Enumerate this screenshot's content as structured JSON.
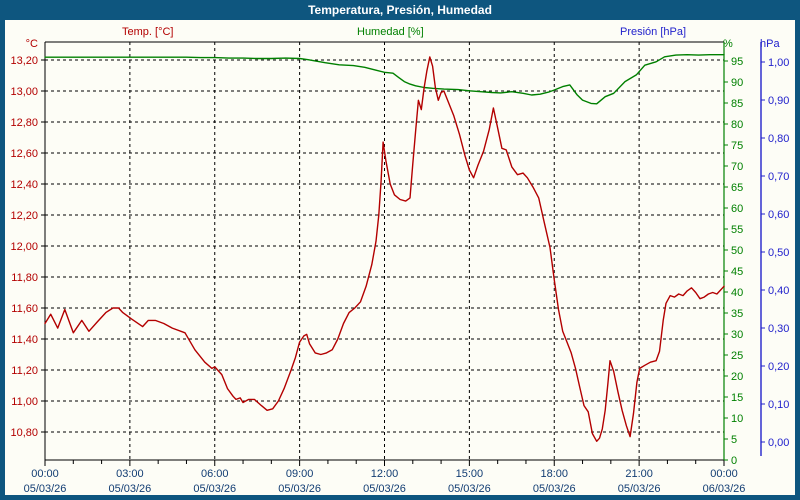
{
  "window": {
    "title": "Temperatura, Presión, Humedad"
  },
  "colors": {
    "window_border": "#0e567f",
    "titlebar_bg": "#0e567f",
    "titlebar_text": "#ffffff",
    "page_bg": "#fdfdf6",
    "temp": "#b30000",
    "humidity": "#008000",
    "pressure": "#2222cc",
    "grid": "#000000",
    "frame": "#000000",
    "time_text": "#123d73"
  },
  "header_units": {
    "temp": "°C",
    "humidity": "%",
    "pressure": "hPa"
  },
  "chart_data": {
    "type": "line",
    "title": "Temperatura, Presión, Humedad",
    "x_axis": {
      "range_hours": [
        0,
        24
      ],
      "grid_hours": [
        3,
        6,
        9,
        12,
        15,
        18,
        21
      ],
      "major_tick_hours": [
        0,
        3,
        6,
        9,
        12,
        15,
        18,
        21,
        24
      ],
      "minor_tick_step_hours": 1,
      "time_labels": [
        "00:00",
        "03:00",
        "06:00",
        "09:00",
        "12:00",
        "15:00",
        "18:00",
        "21:00",
        "00:00"
      ],
      "date_labels": [
        "05/03/26",
        "05/03/26",
        "05/03/26",
        "05/03/26",
        "05/03/26",
        "05/03/26",
        "05/03/26",
        "05/03/26",
        "06/03/26"
      ]
    },
    "y_axis_temp": {
      "title": "Temp. [°C]",
      "unit": "°C",
      "side": "left",
      "color": "#b30000",
      "grid": "dashed",
      "tick_labels": [
        "13,20",
        "13,00",
        "12,80",
        "12,60",
        "12,40",
        "12,20",
        "12,00",
        "11,80",
        "11,60",
        "11,40",
        "11,20",
        "11,00",
        "10,80"
      ],
      "tick_values": [
        13.2,
        13.0,
        12.8,
        12.6,
        12.4,
        12.2,
        12.0,
        11.8,
        11.6,
        11.4,
        11.2,
        11.0,
        10.8
      ]
    },
    "y_axis_humidity": {
      "title": "Humedad [%]",
      "unit": "%",
      "side": "right",
      "color": "#008000",
      "tick_labels": [
        "95",
        "90",
        "85",
        "80",
        "75",
        "70",
        "65",
        "60",
        "55",
        "50",
        "45",
        "40",
        "35",
        "30",
        "25",
        "20",
        "15",
        "10",
        "5",
        "0"
      ],
      "tick_values": [
        95,
        90,
        85,
        80,
        75,
        70,
        65,
        60,
        55,
        50,
        45,
        40,
        35,
        30,
        25,
        20,
        15,
        10,
        5,
        0
      ]
    },
    "y_axis_pressure": {
      "title": "Presión [hPa]",
      "unit": "hPa",
      "side": "right-outer",
      "color": "#2222cc",
      "tick_labels": [
        "1,00",
        "0,90",
        "0,80",
        "0,70",
        "0,60",
        "0,50",
        "0,40",
        "0,30",
        "0,20",
        "0,10",
        "0,00"
      ],
      "tick_values": [
        1.0,
        0.9,
        0.8,
        0.7,
        0.6,
        0.5,
        0.4,
        0.3,
        0.2,
        0.1,
        0.0
      ]
    },
    "series": [
      {
        "name": "Temp. [°C]",
        "axis": "temp",
        "color": "#b30000",
        "points": [
          [
            0,
            11.5
          ],
          [
            0.2,
            11.56
          ],
          [
            0.45,
            11.47
          ],
          [
            0.7,
            11.59
          ],
          [
            1,
            11.44
          ],
          [
            1.3,
            11.52
          ],
          [
            1.55,
            11.45
          ],
          [
            1.85,
            11.51
          ],
          [
            2.15,
            11.57
          ],
          [
            2.4,
            11.6
          ],
          [
            2.6,
            11.6
          ],
          [
            2.75,
            11.57
          ],
          [
            3.05,
            11.53
          ],
          [
            3.45,
            11.48
          ],
          [
            3.65,
            11.52
          ],
          [
            3.9,
            11.52
          ],
          [
            4.2,
            11.5
          ],
          [
            4.5,
            11.47
          ],
          [
            4.95,
            11.44
          ],
          [
            5.3,
            11.33
          ],
          [
            5.65,
            11.25
          ],
          [
            5.9,
            11.21
          ],
          [
            6,
            11.22
          ],
          [
            6.25,
            11.17
          ],
          [
            6.45,
            11.08
          ],
          [
            6.65,
            11.03
          ],
          [
            6.75,
            11.01
          ],
          [
            6.9,
            11.02
          ],
          [
            7,
            10.99
          ],
          [
            7.2,
            11.01
          ],
          [
            7.4,
            11.01
          ],
          [
            7.65,
            10.97
          ],
          [
            7.85,
            10.94
          ],
          [
            8.05,
            10.95
          ],
          [
            8.25,
            11
          ],
          [
            8.45,
            11.08
          ],
          [
            8.7,
            11.2
          ],
          [
            8.85,
            11.28
          ],
          [
            9,
            11.38
          ],
          [
            9.15,
            11.42
          ],
          [
            9.25,
            11.43
          ],
          [
            9.35,
            11.37
          ],
          [
            9.55,
            11.31
          ],
          [
            9.75,
            11.3
          ],
          [
            9.95,
            11.31
          ],
          [
            10.15,
            11.33
          ],
          [
            10.35,
            11.4
          ],
          [
            10.55,
            11.5
          ],
          [
            10.75,
            11.57
          ],
          [
            10.95,
            11.6
          ],
          [
            11.15,
            11.64
          ],
          [
            11.35,
            11.74
          ],
          [
            11.55,
            11.88
          ],
          [
            11.7,
            12.03
          ],
          [
            11.8,
            12.2
          ],
          [
            11.88,
            12.42
          ],
          [
            11.95,
            12.67
          ],
          [
            12.05,
            12.55
          ],
          [
            12.2,
            12.4
          ],
          [
            12.35,
            12.33
          ],
          [
            12.55,
            12.3
          ],
          [
            12.75,
            12.29
          ],
          [
            12.9,
            12.31
          ],
          [
            13,
            12.53
          ],
          [
            13.1,
            12.74
          ],
          [
            13.2,
            12.94
          ],
          [
            13.3,
            12.88
          ],
          [
            13.4,
            13.02
          ],
          [
            13.5,
            13.13
          ],
          [
            13.6,
            13.22
          ],
          [
            13.7,
            13.16
          ],
          [
            13.8,
            13.02
          ],
          [
            13.9,
            12.94
          ],
          [
            14,
            12.99
          ],
          [
            14.1,
            13
          ],
          [
            14.25,
            12.93
          ],
          [
            14.45,
            12.84
          ],
          [
            14.65,
            12.72
          ],
          [
            14.85,
            12.58
          ],
          [
            15,
            12.49
          ],
          [
            15.15,
            12.44
          ],
          [
            15.3,
            12.52
          ],
          [
            15.5,
            12.61
          ],
          [
            15.7,
            12.75
          ],
          [
            15.85,
            12.89
          ],
          [
            16,
            12.76
          ],
          [
            16.15,
            12.63
          ],
          [
            16.3,
            12.62
          ],
          [
            16.5,
            12.51
          ],
          [
            16.7,
            12.46
          ],
          [
            16.9,
            12.47
          ],
          [
            17.05,
            12.44
          ],
          [
            17.25,
            12.38
          ],
          [
            17.45,
            12.31
          ],
          [
            17.65,
            12.15
          ],
          [
            17.85,
            11.99
          ],
          [
            18,
            11.78
          ],
          [
            18.15,
            11.59
          ],
          [
            18.3,
            11.45
          ],
          [
            18.45,
            11.38
          ],
          [
            18.6,
            11.31
          ],
          [
            18.75,
            11.21
          ],
          [
            18.9,
            11.09
          ],
          [
            19.05,
            10.97
          ],
          [
            19.2,
            10.93
          ],
          [
            19.35,
            10.79
          ],
          [
            19.5,
            10.74
          ],
          [
            19.6,
            10.76
          ],
          [
            19.7,
            10.82
          ],
          [
            19.8,
            10.94
          ],
          [
            19.9,
            11.12
          ],
          [
            19.97,
            11.26
          ],
          [
            20.1,
            11.19
          ],
          [
            20.25,
            11.06
          ],
          [
            20.4,
            10.94
          ],
          [
            20.55,
            10.84
          ],
          [
            20.68,
            10.77
          ],
          [
            20.8,
            10.92
          ],
          [
            20.92,
            11.12
          ],
          [
            21.02,
            11.21
          ],
          [
            21.2,
            11.23
          ],
          [
            21.4,
            11.25
          ],
          [
            21.6,
            11.26
          ],
          [
            21.72,
            11.32
          ],
          [
            21.85,
            11.52
          ],
          [
            21.95,
            11.63
          ],
          [
            22.1,
            11.68
          ],
          [
            22.25,
            11.67
          ],
          [
            22.4,
            11.69
          ],
          [
            22.55,
            11.68
          ],
          [
            22.7,
            11.71
          ],
          [
            22.85,
            11.73
          ],
          [
            23,
            11.7
          ],
          [
            23.15,
            11.66
          ],
          [
            23.3,
            11.67
          ],
          [
            23.45,
            11.69
          ],
          [
            23.6,
            11.7
          ],
          [
            23.75,
            11.69
          ],
          [
            23.85,
            11.71
          ],
          [
            24,
            11.74
          ]
        ]
      },
      {
        "name": "Humedad [%]",
        "axis": "humidity",
        "color": "#008000",
        "points": [
          [
            0,
            95.9
          ],
          [
            0.5,
            95.9
          ],
          [
            1,
            95.9
          ],
          [
            1.5,
            95.9
          ],
          [
            2,
            95.9
          ],
          [
            2.5,
            95.9
          ],
          [
            3,
            95.9
          ],
          [
            3.5,
            95.9
          ],
          [
            4,
            95.9
          ],
          [
            4.5,
            95.9
          ],
          [
            5,
            95.9
          ],
          [
            5.5,
            95.8
          ],
          [
            6,
            95.8
          ],
          [
            6.5,
            95.7
          ],
          [
            7,
            95.7
          ],
          [
            7.5,
            95.6
          ],
          [
            8,
            95.6
          ],
          [
            8.5,
            95.7
          ],
          [
            9,
            95.6
          ],
          [
            9.3,
            95.3
          ],
          [
            9.9,
            94.6
          ],
          [
            10.4,
            94.1
          ],
          [
            10.9,
            93.9
          ],
          [
            11.3,
            93.5
          ],
          [
            11.7,
            92.8
          ],
          [
            12,
            92.3
          ],
          [
            12.3,
            92.1
          ],
          [
            12.5,
            91.1
          ],
          [
            12.7,
            90.1
          ],
          [
            12.9,
            89.5
          ],
          [
            13.1,
            89.1
          ],
          [
            13.4,
            88.7
          ],
          [
            13.7,
            88.5
          ],
          [
            14.1,
            88.3
          ],
          [
            14.6,
            88.2
          ],
          [
            15,
            87.9
          ],
          [
            15.4,
            87.7
          ],
          [
            15.8,
            87.5
          ],
          [
            16.1,
            87.4
          ],
          [
            16.5,
            87.7
          ],
          [
            16.9,
            87.3
          ],
          [
            17.2,
            86.9
          ],
          [
            17.5,
            87.1
          ],
          [
            17.8,
            87.6
          ],
          [
            18,
            88.1
          ],
          [
            18.3,
            88.9
          ],
          [
            18.55,
            89.3
          ],
          [
            18.8,
            87
          ],
          [
            19,
            85.7
          ],
          [
            19.3,
            84.9
          ],
          [
            19.5,
            84.8
          ],
          [
            19.8,
            86.5
          ],
          [
            20.1,
            87.3
          ],
          [
            20.5,
            90.1
          ],
          [
            20.9,
            91.7
          ],
          [
            21.2,
            94
          ],
          [
            21.6,
            94.8
          ],
          [
            21.9,
            96
          ],
          [
            22.3,
            96.4
          ],
          [
            22.7,
            96.5
          ],
          [
            23.1,
            96.4
          ],
          [
            23.5,
            96.5
          ],
          [
            24,
            96.5
          ]
        ]
      },
      {
        "name": "Presión [hPa]",
        "axis": "pressure",
        "color": "#2222cc",
        "points": []
      }
    ]
  }
}
